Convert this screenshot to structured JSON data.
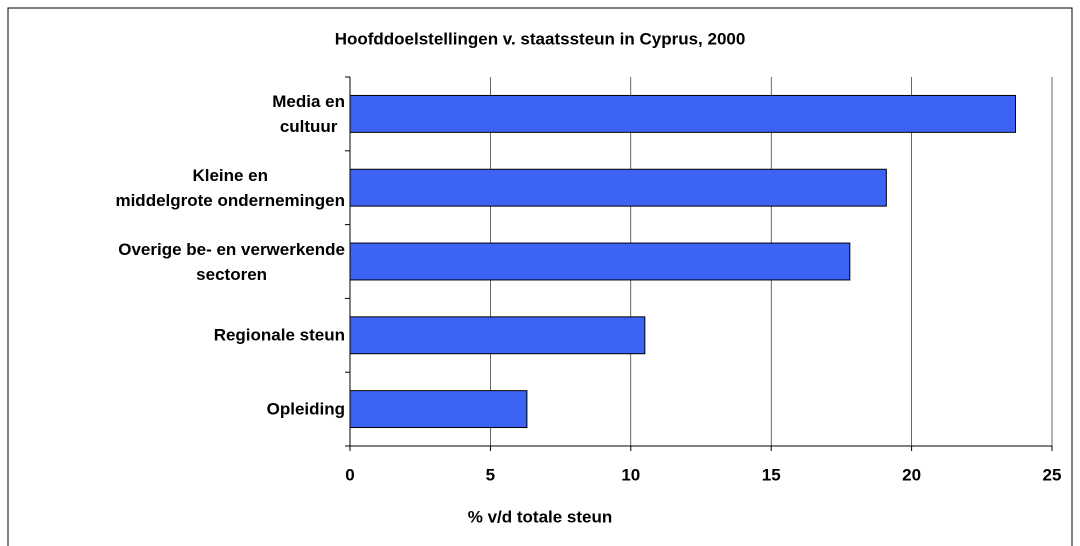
{
  "chart_data": {
    "type": "bar",
    "orientation": "horizontal",
    "title": "Hoofddoelstellingen v. staatssteun in Cyprus, 2000",
    "x_label": "% v/d totale steun",
    "categories": [
      "Media en\ncultuur",
      "Kleine en\nmiddelgrote ondernemingen",
      "Overige be- en verwerkende\nsectoren",
      "Regionale steun",
      "Opleiding"
    ],
    "values": [
      23.7,
      19.1,
      17.8,
      10.5,
      6.3
    ],
    "color": "#3d63f5",
    "xlim": [
      0,
      25
    ],
    "xticks": [
      0,
      5,
      10,
      15,
      20,
      25
    ],
    "grid": true
  }
}
